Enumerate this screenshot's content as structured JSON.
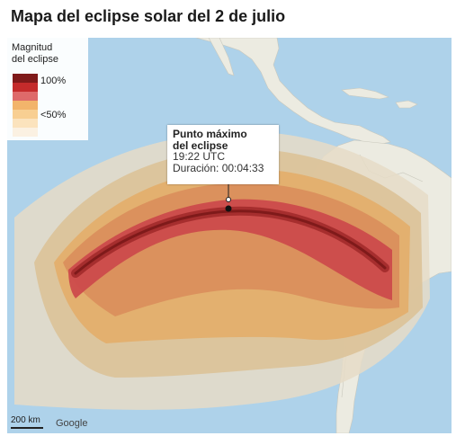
{
  "title": "Mapa del eclipse solar del 2 de julio",
  "legend": {
    "title_line1": "Magnitud",
    "title_line2": "del eclipse",
    "label_top": "100%",
    "label_bottom": "<50%",
    "colors": [
      "#7f1a1a",
      "#c42b2b",
      "#de6a6a",
      "#f2b46b",
      "#f8cf92",
      "#fbe3bd",
      "#fbf1e2"
    ]
  },
  "callout": {
    "line1": "Punto máximo",
    "line2": "del eclipse",
    "time": "19:22 UTC",
    "duration": "Duración: 00:04:33"
  },
  "scale": {
    "label": "200 km"
  },
  "attribution": "Google",
  "colors": {
    "ocean": "#aed2ea",
    "land": "#ecebe1",
    "band_outer": "#e6dcc7",
    "band_mid": "#dcc298",
    "band_inner": "#e3ad6a",
    "band_core": "#d98c5a",
    "band_path": "#cc4b4b",
    "band_center": "#a62e2e"
  }
}
